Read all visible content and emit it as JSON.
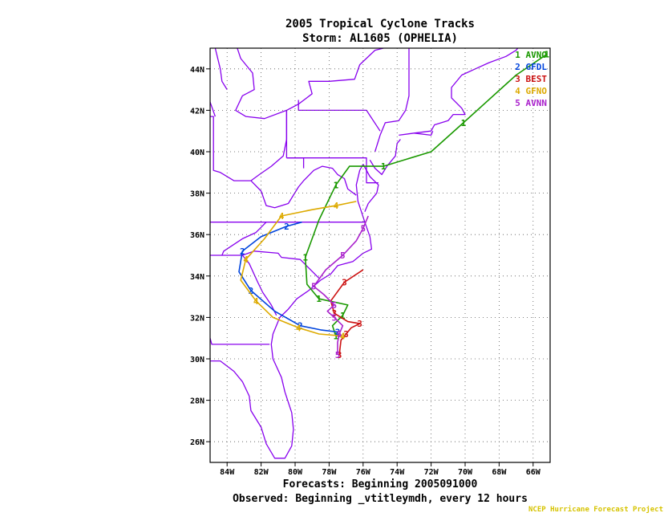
{
  "header": {
    "title": "2005 Tropical Cyclone Tracks",
    "storm": "Storm: AL1605 (OPHELIA)"
  },
  "footer": {
    "forecasts": "Forecasts: Beginning 2005091000",
    "observed": "Observed: Beginning _vtitleymdh, every 12 hours",
    "credit": "NCEP Hurricane Forecast Project"
  },
  "map": {
    "lon_range": [
      -85,
      -65
    ],
    "lat_range": [
      25,
      45
    ],
    "lon_ticks": [
      {
        "value": -84,
        "label": "84W"
      },
      {
        "value": -82,
        "label": "82W"
      },
      {
        "value": -80,
        "label": "80W"
      },
      {
        "value": -78,
        "label": "78W"
      },
      {
        "value": -76,
        "label": "76W"
      },
      {
        "value": -74,
        "label": "74W"
      },
      {
        "value": -72,
        "label": "72W"
      },
      {
        "value": -70,
        "label": "70W"
      },
      {
        "value": -68,
        "label": "68W"
      },
      {
        "value": -66,
        "label": "66W"
      }
    ],
    "lat_ticks": [
      {
        "value": 26,
        "label": "26N"
      },
      {
        "value": 28,
        "label": "28N"
      },
      {
        "value": 30,
        "label": "30N"
      },
      {
        "value": 32,
        "label": "32N"
      },
      {
        "value": 34,
        "label": "34N"
      },
      {
        "value": 36,
        "label": "36N"
      },
      {
        "value": 38,
        "label": "38N"
      },
      {
        "value": 40,
        "label": "40N"
      },
      {
        "value": 42,
        "label": "42N"
      },
      {
        "value": 44,
        "label": "44N"
      }
    ],
    "grid": "dotted",
    "land_color": "#8800ee"
  },
  "legend": [
    {
      "num": "1",
      "name": "AVNO",
      "color": "#1a9900"
    },
    {
      "num": "2",
      "name": "GFDL",
      "color": "#0044dd"
    },
    {
      "num": "3",
      "name": "BEST",
      "color": "#cc1111"
    },
    {
      "num": "4",
      "name": "GFNO",
      "color": "#ddaa00"
    },
    {
      "num": "5",
      "name": "AVNN",
      "color": "#aa22cc"
    }
  ],
  "tracks": [
    {
      "model": "AVNO",
      "marker": "1",
      "color": "#1a9900",
      "points": [
        [
          -77.6,
          31.1
        ],
        [
          -77.8,
          31.6
        ],
        [
          -77.2,
          32.1
        ],
        [
          -76.9,
          32.6
        ],
        [
          -78.6,
          32.9
        ],
        [
          -79.3,
          33.6
        ],
        [
          -79.4,
          34.9
        ],
        [
          -78.6,
          36.7
        ],
        [
          -77.6,
          38.4
        ],
        [
          -76.8,
          39.3
        ],
        [
          -74.8,
          39.3
        ],
        [
          -72.0,
          40.0
        ],
        [
          -70.1,
          41.4
        ],
        [
          -67.0,
          43.7
        ],
        [
          -65.2,
          44.7
        ]
      ]
    },
    {
      "model": "GFDL",
      "marker": "2",
      "color": "#0044dd",
      "points": [
        [
          -77.5,
          31.3
        ],
        [
          -78.5,
          31.4
        ],
        [
          -79.7,
          31.6
        ],
        [
          -81.2,
          32.3
        ],
        [
          -82.6,
          33.3
        ],
        [
          -83.3,
          34.2
        ],
        [
          -83.1,
          35.2
        ],
        [
          -82.0,
          35.9
        ],
        [
          -80.5,
          36.4
        ],
        [
          -79.6,
          36.6
        ]
      ]
    },
    {
      "model": "BEST",
      "marker": "3",
      "color": "#cc1111",
      "points": [
        [
          -77.4,
          30.2
        ],
        [
          -77.3,
          30.9
        ],
        [
          -77.0,
          31.2
        ],
        [
          -76.7,
          31.5
        ],
        [
          -76.2,
          31.7
        ],
        [
          -76.9,
          31.8
        ],
        [
          -77.7,
          32.2
        ],
        [
          -77.9,
          32.8
        ],
        [
          -77.1,
          33.7
        ],
        [
          -76.0,
          34.3
        ]
      ]
    },
    {
      "model": "GFNO",
      "marker": "4",
      "color": "#ddaa00",
      "points": [
        [
          -77.2,
          31.1
        ],
        [
          -78.6,
          31.2
        ],
        [
          -79.8,
          31.5
        ],
        [
          -81.3,
          32.0
        ],
        [
          -82.3,
          32.8
        ],
        [
          -83.2,
          33.8
        ],
        [
          -82.9,
          34.8
        ],
        [
          -81.8,
          35.8
        ],
        [
          -80.8,
          36.9
        ],
        [
          -79.0,
          37.2
        ],
        [
          -77.6,
          37.4
        ],
        [
          -76.4,
          37.6
        ]
      ]
    },
    {
      "model": "AVNN",
      "marker": "5",
      "color": "#aa22cc",
      "points": [
        [
          -77.5,
          30.2
        ],
        [
          -77.5,
          30.8
        ],
        [
          -77.4,
          31.2
        ],
        [
          -77.2,
          31.6
        ],
        [
          -77.7,
          32.0
        ],
        [
          -78.1,
          32.3
        ],
        [
          -77.7,
          32.6
        ],
        [
          -78.3,
          33.1
        ],
        [
          -78.9,
          33.5
        ],
        [
          -78.2,
          34.3
        ],
        [
          -77.2,
          35.0
        ],
        [
          -76.4,
          35.7
        ],
        [
          -76.0,
          36.3
        ],
        [
          -75.7,
          36.9
        ]
      ]
    }
  ]
}
